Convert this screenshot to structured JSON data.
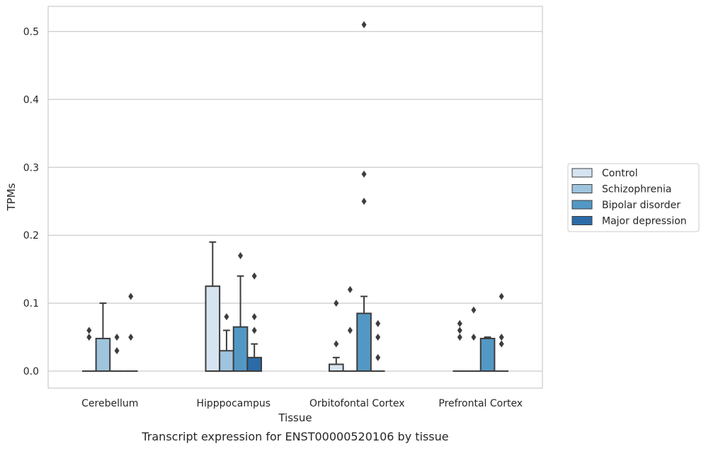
{
  "caption": "Transcript expression for ENST00000520106 by tissue",
  "chart_data": {
    "type": "box",
    "xlabel": "Tissue",
    "ylabel": "TPMs",
    "ylim": [
      -0.025,
      0.537
    ],
    "yticks": [
      0.0,
      0.1,
      0.2,
      0.3,
      0.4,
      0.5
    ],
    "ytick_labels": [
      "0.0",
      "0.1",
      "0.2",
      "0.3",
      "0.4",
      "0.5"
    ],
    "grid": "horizontal",
    "legend_position": "right",
    "categories": [
      "Cerebellum",
      "Hipppocampus",
      "Orbitofontal Cortex",
      "Prefrontal Cortex"
    ],
    "series": [
      {
        "name": "Control",
        "color": "#d6e4f2",
        "boxes": [
          {
            "q1": 0.0,
            "median": 0.0,
            "q3": 0.0,
            "whisker_low": 0.0,
            "whisker_high": 0.0,
            "outliers": [
              0.05,
              0.06
            ]
          },
          {
            "q1": 0.0,
            "median": 0.0,
            "q3": 0.125,
            "whisker_low": 0.0,
            "whisker_high": 0.19,
            "outliers": []
          },
          {
            "q1": 0.0,
            "median": 0.0,
            "q3": 0.01,
            "whisker_low": 0.0,
            "whisker_high": 0.02,
            "outliers": [
              0.04,
              0.1
            ]
          },
          {
            "q1": 0.0,
            "median": 0.0,
            "q3": 0.0,
            "whisker_low": 0.0,
            "whisker_high": 0.0,
            "outliers": [
              0.05,
              0.06,
              0.07
            ]
          }
        ]
      },
      {
        "name": "Schizophrenia",
        "color": "#9ec5dd",
        "boxes": [
          {
            "q1": 0.0,
            "median": 0.0,
            "q3": 0.048,
            "whisker_low": 0.0,
            "whisker_high": 0.1,
            "outliers": []
          },
          {
            "q1": 0.0,
            "median": 0.0,
            "q3": 0.03,
            "whisker_low": 0.0,
            "whisker_high": 0.06,
            "outliers": [
              0.08
            ]
          },
          {
            "q1": 0.0,
            "median": 0.0,
            "q3": 0.0,
            "whisker_low": 0.0,
            "whisker_high": 0.0,
            "outliers": [
              0.06,
              0.12
            ]
          },
          {
            "q1": 0.0,
            "median": 0.0,
            "q3": 0.0,
            "whisker_low": 0.0,
            "whisker_high": 0.0,
            "outliers": [
              0.05,
              0.09
            ]
          }
        ]
      },
      {
        "name": "Bipolar disorder",
        "color": "#5398c5",
        "boxes": [
          {
            "q1": 0.0,
            "median": 0.0,
            "q3": 0.0,
            "whisker_low": 0.0,
            "whisker_high": 0.0,
            "outliers": [
              0.03,
              0.05
            ]
          },
          {
            "q1": 0.0,
            "median": 0.0,
            "q3": 0.065,
            "whisker_low": 0.0,
            "whisker_high": 0.14,
            "outliers": [
              0.17
            ]
          },
          {
            "q1": 0.0,
            "median": 0.0,
            "q3": 0.085,
            "whisker_low": 0.0,
            "whisker_high": 0.11,
            "outliers": [
              0.25,
              0.29,
              0.51
            ]
          },
          {
            "q1": 0.0,
            "median": 0.0,
            "q3": 0.048,
            "whisker_low": 0.0,
            "whisker_high": 0.05,
            "outliers": []
          }
        ]
      },
      {
        "name": "Major depression",
        "color": "#2c6ba8",
        "boxes": [
          {
            "q1": 0.0,
            "median": 0.0,
            "q3": 0.0,
            "whisker_low": 0.0,
            "whisker_high": 0.0,
            "outliers": [
              0.05,
              0.11
            ]
          },
          {
            "q1": 0.0,
            "median": 0.0,
            "q3": 0.02,
            "whisker_low": 0.0,
            "whisker_high": 0.04,
            "outliers": [
              0.06,
              0.08,
              0.14
            ]
          },
          {
            "q1": 0.0,
            "median": 0.0,
            "q3": 0.0,
            "whisker_low": 0.0,
            "whisker_high": 0.0,
            "outliers": [
              0.02,
              0.05,
              0.07
            ]
          },
          {
            "q1": 0.0,
            "median": 0.0,
            "q3": 0.0,
            "whisker_low": 0.0,
            "whisker_high": 0.0,
            "outliers": [
              0.04,
              0.05,
              0.11
            ]
          }
        ]
      }
    ]
  }
}
